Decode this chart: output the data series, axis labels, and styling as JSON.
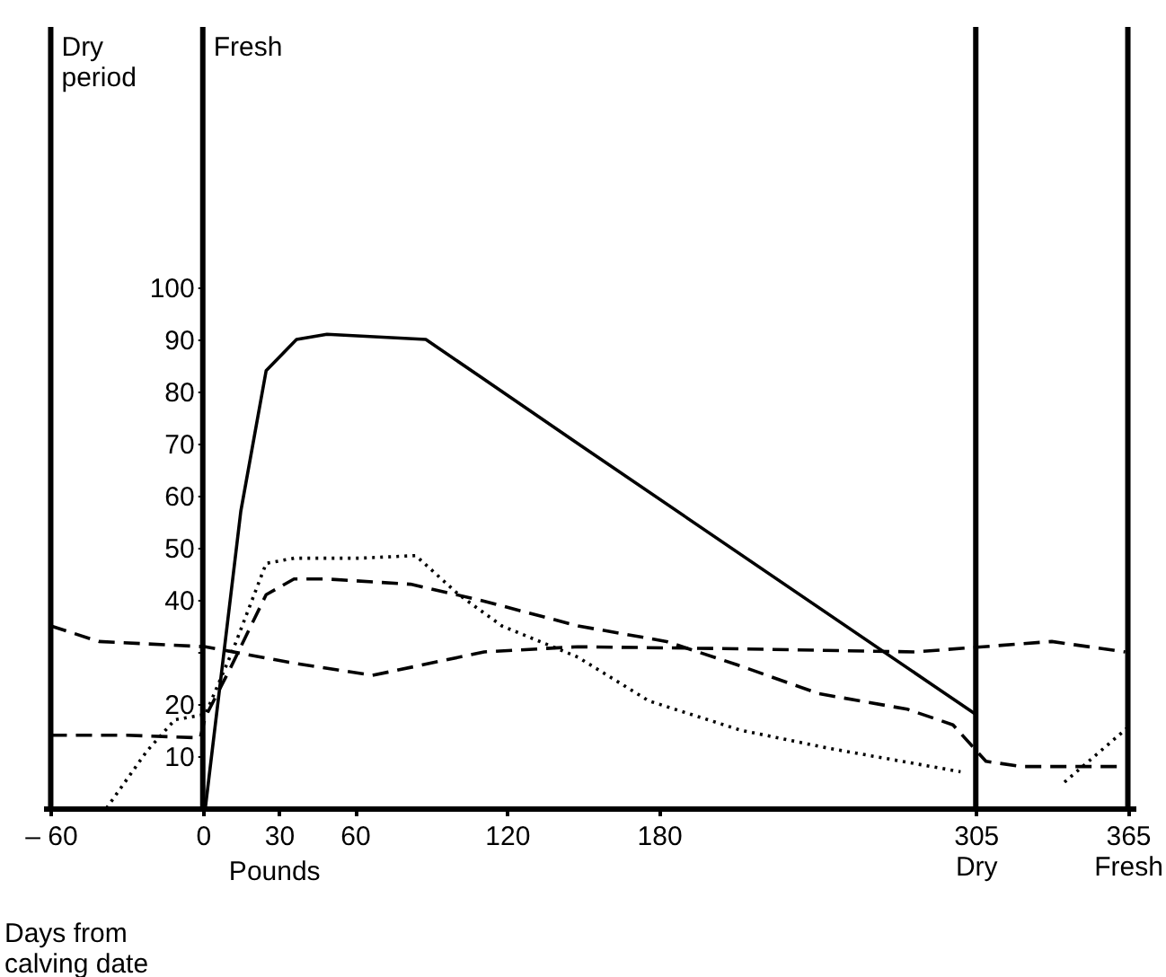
{
  "chart_data": {
    "type": "line",
    "xlabel": "Days from calving date",
    "annotations": [
      "Pounds"
    ],
    "xlim": [
      -63,
      368
    ],
    "ylim": [
      0,
      150
    ],
    "xticks": [
      {
        "value": -60,
        "label": "– 60"
      },
      0,
      30,
      60,
      120,
      180,
      {
        "value": 305,
        "label": "305\nDry"
      },
      {
        "value": 365,
        "label": "365\nFresh"
      }
    ],
    "yticks": [
      10,
      20,
      {
        "value": 30,
        "label": null
      },
      40,
      50,
      60,
      70,
      80,
      90,
      100
    ],
    "grid": false,
    "ref_lines": [
      {
        "axis": "x",
        "value": -60,
        "label": "Dry period"
      },
      {
        "axis": "x",
        "value": 0,
        "label": "Fresh"
      },
      {
        "axis": "x",
        "value": 305
      },
      {
        "axis": "x",
        "value": 365
      }
    ],
    "series": [
      {
        "color": "#000000",
        "line_style": "solid",
        "x": [
          1,
          15,
          25,
          37,
          49,
          88,
          109,
          148,
          305
        ],
        "values": [
          0,
          57,
          84,
          90,
          91,
          90,
          83,
          70,
          18
        ]
      },
      {
        "color": "#000000",
        "line_style": "dashed",
        "x": [
          -60,
          -30,
          -1,
          1,
          11,
          25,
          36,
          49,
          82,
          109,
          148,
          183,
          211,
          243,
          278,
          296,
          309,
          323,
          365
        ],
        "values": [
          14,
          14,
          13.5,
          17.5,
          27,
          41,
          44,
          44,
          43,
          40,
          35,
          32,
          27.5,
          22,
          19,
          16,
          9,
          8,
          8
        ]
      },
      {
        "color": "#000000",
        "line_style": "dotted",
        "x": [
          -38,
          -22,
          -11,
          1,
          12,
          25,
          36,
          62,
          84,
          101,
          118,
          148,
          176,
          212,
          247,
          299,
          null,
          340,
          365
        ],
        "values": [
          0,
          11,
          17,
          18,
          30.5,
          47,
          48,
          48,
          48.5,
          41,
          35,
          29,
          20.6,
          15,
          11.5,
          7,
          null,
          5,
          15.5
        ]
      },
      {
        "color": "#000000",
        "line_style": "dashed",
        "x": [
          -60,
          -41,
          1,
          34,
          67,
          111,
          148,
          211,
          281,
          335,
          364
        ],
        "values": [
          35,
          32,
          31,
          28,
          25.5,
          30,
          31,
          30.6,
          30,
          32,
          30
        ]
      }
    ]
  }
}
